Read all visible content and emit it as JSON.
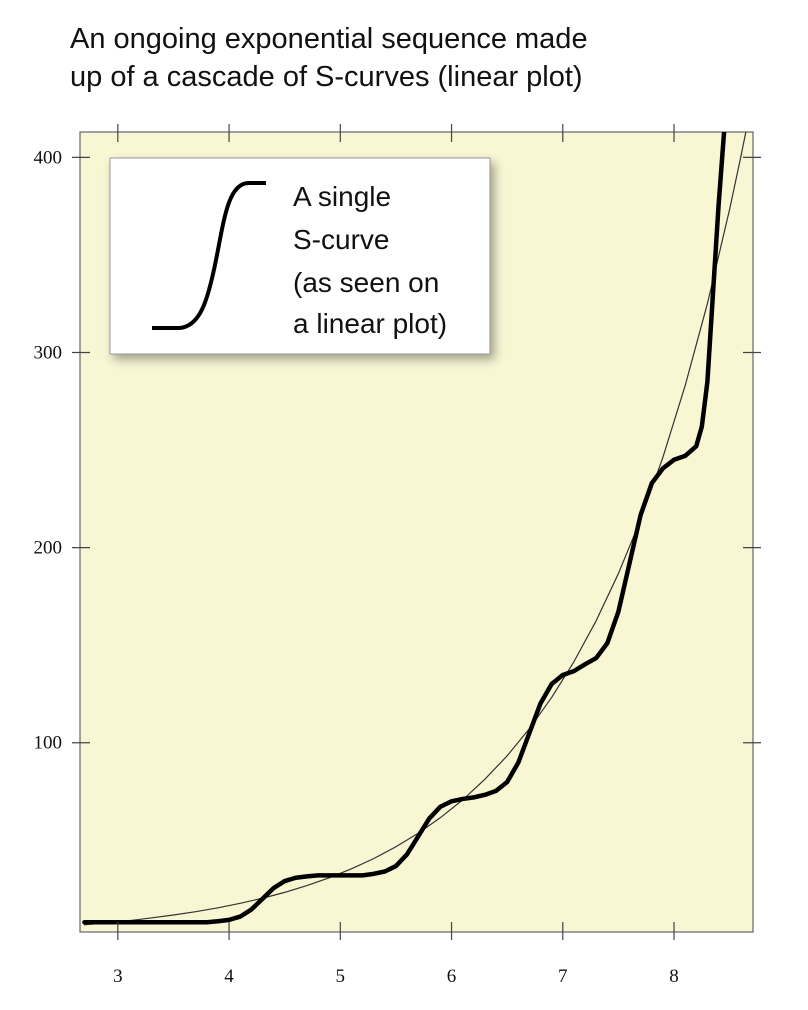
{
  "chart_data": {
    "type": "line",
    "title": [
      "An ongoing exponential sequence made",
      "up of a cascade of S-curves (linear plot)"
    ],
    "legend_text": [
      "A single",
      "S-curve",
      "(as seen on",
      "a linear plot)"
    ],
    "xlim": [
      2.66,
      8.71
    ],
    "ylim": [
      3,
      413
    ],
    "xticks": [
      3,
      4,
      5,
      6,
      7,
      8
    ],
    "yticks": [
      100,
      200,
      300,
      400
    ],
    "background": "#f8f6d3",
    "series": [
      {
        "color": "#333333",
        "x": [
          2.7,
          2.9,
          3.1,
          3.3,
          3.5,
          3.7,
          3.9,
          4.1,
          4.3,
          4.5,
          4.7,
          4.9,
          5.1,
          5.3,
          5.5,
          5.7,
          5.9,
          6.1,
          6.3,
          6.5,
          6.7,
          6.9,
          7.1,
          7.3,
          7.5,
          7.7,
          7.9,
          8.1,
          8.3,
          8.5,
          8.6,
          8.65
        ],
        "values": [
          6.7,
          7.7,
          8.8,
          10.2,
          11.7,
          13.4,
          15.4,
          17.7,
          20.3,
          23.3,
          26.8,
          30.8,
          35.4,
          40.6,
          46.7,
          53.6,
          61.6,
          70.7,
          81.3,
          93.3,
          107.2,
          123.2,
          141.5,
          162.5,
          186.7,
          214.4,
          246.3,
          283,
          325,
          373.4,
          400.2,
          414.2
        ]
      },
      {
        "color": "#000000",
        "x": [
          2.7,
          2.8,
          2.9,
          3.0,
          3.1,
          3.2,
          3.3,
          3.4,
          3.5,
          3.6,
          3.7,
          3.8,
          3.9,
          4.0,
          4.1,
          4.2,
          4.3,
          4.4,
          4.5,
          4.6,
          4.7,
          4.8,
          4.9,
          5.0,
          5.1,
          5.2,
          5.3,
          5.4,
          5.5,
          5.6,
          5.7,
          5.8,
          5.9,
          6.0,
          6.1,
          6.2,
          6.3,
          6.4,
          6.5,
          6.6,
          6.7,
          6.8,
          6.9,
          7.0,
          7.1,
          7.2,
          7.3,
          7.4,
          7.5,
          7.6,
          7.7,
          7.8,
          7.9,
          8.0,
          8.1,
          8.2,
          8.25,
          8.3,
          8.35,
          8.4,
          8.45
        ],
        "values": [
          8,
          8,
          8,
          8,
          8,
          8,
          8,
          8,
          8,
          8,
          8,
          8,
          8.5,
          9.2,
          10.9,
          14.5,
          20,
          25.5,
          29.1,
          30.8,
          31.5,
          32,
          32,
          32,
          32,
          32,
          32.8,
          34,
          36.8,
          42.8,
          52,
          61.2,
          67.2,
          70,
          71.2,
          72,
          73.3,
          75.3,
          79.9,
          89.8,
          105,
          120.2,
          130.1,
          134.7,
          136.7,
          140.2,
          143.4,
          151,
          167.2,
          192,
          216.8,
          233,
          240.6,
          245,
          247,
          252,
          262,
          285,
          330,
          375,
          413
        ]
      }
    ]
  }
}
